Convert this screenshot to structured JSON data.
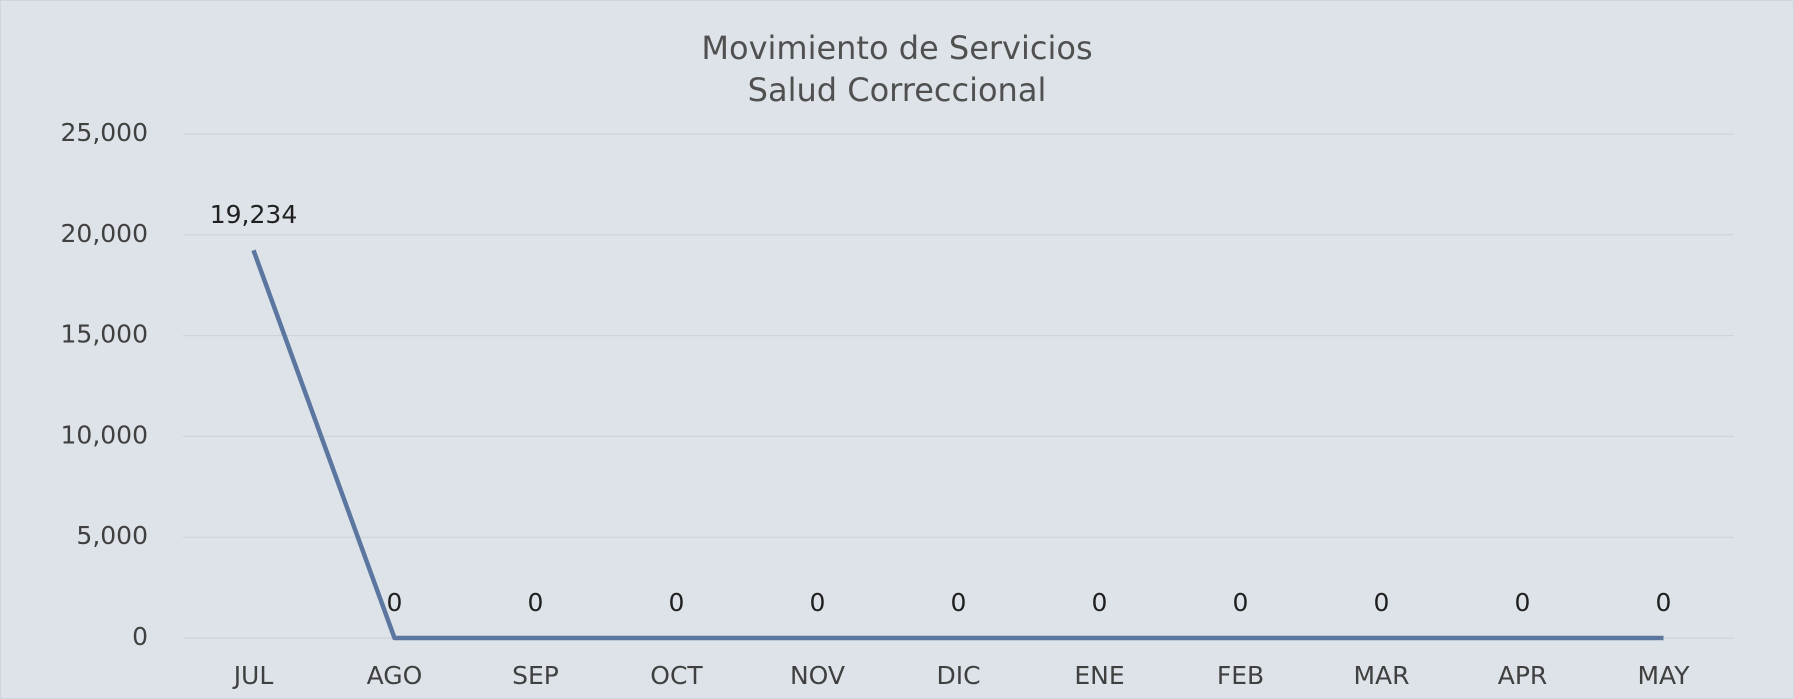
{
  "chart_data": {
    "type": "line",
    "title": "Movimiento de Servicios",
    "subtitle": "Salud Correccional",
    "categories": [
      "JUL",
      "AGO",
      "SEP",
      "OCT",
      "NOV",
      "DIC",
      "ENE",
      "FEB",
      "MAR",
      "APR",
      "MAY"
    ],
    "values": [
      19234,
      0,
      0,
      0,
      0,
      0,
      0,
      0,
      0,
      0,
      0
    ],
    "value_labels": [
      "19,234",
      "0",
      "0",
      "0",
      "0",
      "0",
      "0",
      "0",
      "0",
      "0",
      "0"
    ],
    "color": "#5b77a0",
    "ylim": [
      0,
      25000
    ],
    "yticks": [
      0,
      {
        "value": 5000,
        "label": "5,000"
      },
      {
        "value": 10000,
        "label": "10,000"
      },
      {
        "value": 15000,
        "label": "15,000"
      },
      {
        "value": 20000,
        "label": "20,000"
      },
      {
        "value": 25000,
        "label": "25,000"
      }
    ],
    "grid": true
  }
}
